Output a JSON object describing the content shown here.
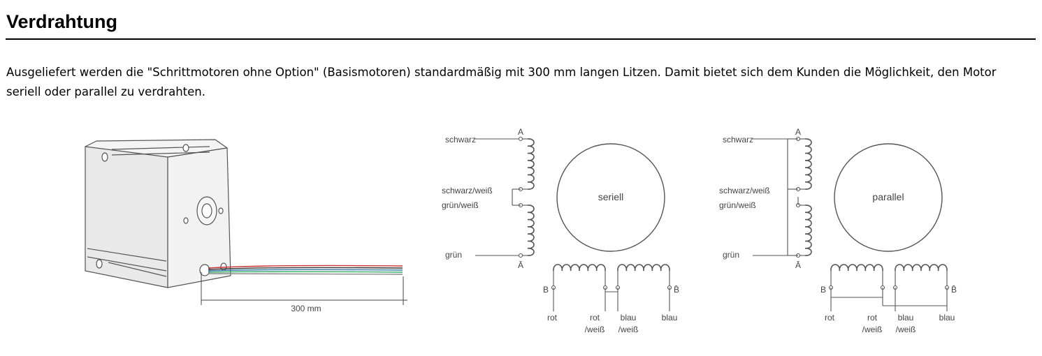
{
  "page": {
    "heading": "Verdrahtung",
    "intro": "Ausgeliefert werden die \"Schrittmotoren ohne Option\" (Basismotoren) standardmäßig mit 300 mm langen Litzen. Damit bietet sich dem Kunden die Möglichkeit, den Motor seriell oder parallel zu verdrahten."
  },
  "motor_figure": {
    "dimension_label": "300 mm"
  },
  "diagrams": [
    {
      "mode": "seriell",
      "wires_left": [
        "schwarz",
        "schwarz/weiß",
        "grün/weiß",
        "grün"
      ],
      "terminal_top": "A",
      "terminal_bottom": "Ā",
      "terminal_left": "B",
      "terminal_right": "B̄",
      "wires_bottom": [
        {
          "line1": "rot",
          "line2": ""
        },
        {
          "line1": "rot",
          "line2": "/weiß"
        },
        {
          "line1": "blau",
          "line2": "/weiß"
        },
        {
          "line1": "blau",
          "line2": ""
        }
      ]
    },
    {
      "mode": "parallel",
      "wires_left": [
        "schwarz",
        "schwarz/weiß",
        "grün/weiß",
        "grün"
      ],
      "terminal_top": "A",
      "terminal_bottom": "Ā",
      "terminal_left": "B",
      "terminal_right": "B̄",
      "wires_bottom": [
        {
          "line1": "rot",
          "line2": ""
        },
        {
          "line1": "rot",
          "line2": "/weiß"
        },
        {
          "line1": "blau",
          "line2": "/weiß"
        },
        {
          "line1": "blau",
          "line2": ""
        }
      ]
    }
  ]
}
